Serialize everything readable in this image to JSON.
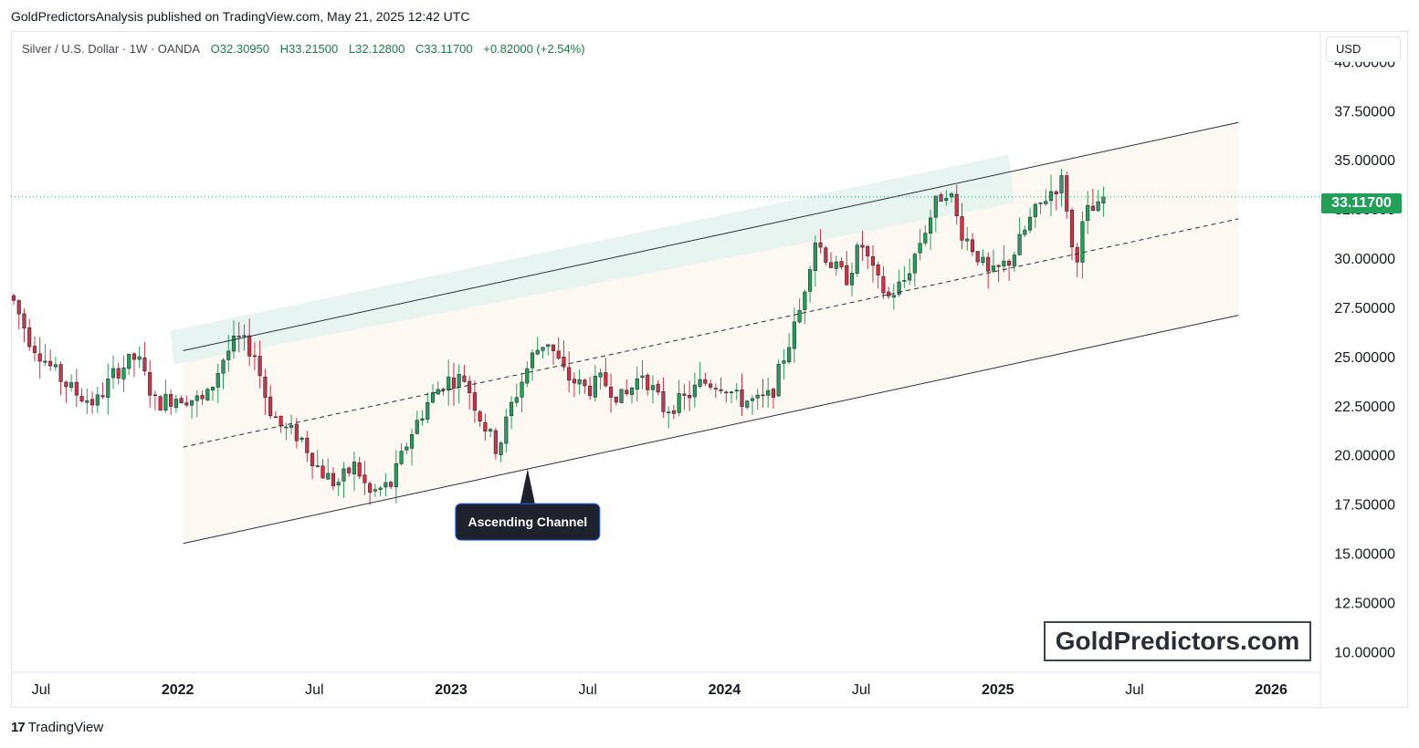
{
  "header": {
    "publisher": "GoldPredictorsAnalysis published on TradingView.com, May 21, 2025 12:42 UTC"
  },
  "symbol_bar": {
    "name": "Silver / U.S. Dollar · 1W · OANDA",
    "open": "O32.30950",
    "high": "H33.21500",
    "low": "L32.12800",
    "close": "C33.11700",
    "change": "+0.82000 (+2.54%)"
  },
  "currency": "USD",
  "last_price_label": "33.11700",
  "watermark": "GoldPredictors.com",
  "footer": {
    "logo_glyph": "17",
    "logo_text": "TradingView"
  },
  "annotation": {
    "label": "Ascending Channel"
  },
  "colors": {
    "up": "#22a05a",
    "down": "#d32f45",
    "channel_fill": "#fdf8f2",
    "resistance_band": "#e4f3ef",
    "line": "#2a2e39",
    "price_line": "#22a05a"
  },
  "chart_data": {
    "type": "candlestick",
    "title": "Silver / U.S. Dollar · 1W · OANDA",
    "y_axis": {
      "range": [
        9.0,
        41.5
      ],
      "ticks": [
        "10.00000",
        "12.50000",
        "15.00000",
        "17.50000",
        "20.00000",
        "22.50000",
        "25.00000",
        "27.50000",
        "30.00000",
        "32.50000",
        "35.00000",
        "37.50000",
        "40.00000"
      ]
    },
    "x_axis": {
      "range_years": [
        2021.39,
        2026.18
      ],
      "ticks": [
        {
          "label": "Jul",
          "t": 2021.5,
          "year": false
        },
        {
          "label": "2022",
          "t": 2022.0,
          "year": true
        },
        {
          "label": "Jul",
          "t": 2022.5,
          "year": false
        },
        {
          "label": "2023",
          "t": 2023.0,
          "year": true
        },
        {
          "label": "Jul",
          "t": 2023.5,
          "year": false
        },
        {
          "label": "2024",
          "t": 2024.0,
          "year": true
        },
        {
          "label": "Jul",
          "t": 2024.5,
          "year": false
        },
        {
          "label": "2025",
          "t": 2025.0,
          "year": true
        },
        {
          "label": "Jul",
          "t": 2025.5,
          "year": false
        },
        {
          "label": "2026",
          "t": 2026.0,
          "year": true
        }
      ]
    },
    "last_price": 33.117,
    "series_keypoints": [
      [
        2021.4,
        27.8
      ],
      [
        2021.46,
        25.8
      ],
      [
        2021.55,
        24.2
      ],
      [
        2021.62,
        23.2
      ],
      [
        2021.7,
        22.6
      ],
      [
        2021.77,
        24.2
      ],
      [
        2021.85,
        25.0
      ],
      [
        2021.92,
        22.6
      ],
      [
        2022.0,
        23.0
      ],
      [
        2022.1,
        22.7
      ],
      [
        2022.17,
        25.0
      ],
      [
        2022.22,
        25.9
      ],
      [
        2022.28,
        25.2
      ],
      [
        2022.33,
        22.5
      ],
      [
        2022.38,
        21.4
      ],
      [
        2022.45,
        20.9
      ],
      [
        2022.52,
        19.2
      ],
      [
        2022.58,
        18.5
      ],
      [
        2022.65,
        19.5
      ],
      [
        2022.7,
        18.0
      ],
      [
        2022.78,
        18.5
      ],
      [
        2022.85,
        21.0
      ],
      [
        2022.92,
        22.8
      ],
      [
        2022.98,
        23.8
      ],
      [
        2023.05,
        23.9
      ],
      [
        2023.1,
        22.1
      ],
      [
        2023.17,
        20.2
      ],
      [
        2023.22,
        22.5
      ],
      [
        2023.3,
        25.1
      ],
      [
        2023.35,
        25.9
      ],
      [
        2023.42,
        24.0
      ],
      [
        2023.5,
        23.3
      ],
      [
        2023.55,
        23.8
      ],
      [
        2023.63,
        22.8
      ],
      [
        2023.7,
        24.2
      ],
      [
        2023.78,
        22.3
      ],
      [
        2023.85,
        22.8
      ],
      [
        2023.92,
        23.7
      ],
      [
        2024.0,
        23.6
      ],
      [
        2024.05,
        22.8
      ],
      [
        2024.12,
        22.7
      ],
      [
        2024.17,
        23.0
      ],
      [
        2024.22,
        25.1
      ],
      [
        2024.27,
        27.0
      ],
      [
        2024.33,
        31.0
      ],
      [
        2024.4,
        29.5
      ],
      [
        2024.45,
        29.0
      ],
      [
        2024.5,
        30.8
      ],
      [
        2024.55,
        29.0
      ],
      [
        2024.6,
        28.0
      ],
      [
        2024.66,
        28.9
      ],
      [
        2024.72,
        31.0
      ],
      [
        2024.78,
        33.0
      ],
      [
        2024.82,
        33.6
      ],
      [
        2024.86,
        31.5
      ],
      [
        2024.92,
        30.3
      ],
      [
        2024.97,
        29.0
      ],
      [
        2025.05,
        30.0
      ],
      [
        2025.12,
        32.0
      ],
      [
        2025.18,
        33.2
      ],
      [
        2025.24,
        34.0
      ],
      [
        2025.28,
        29.5
      ],
      [
        2025.32,
        32.3
      ],
      [
        2025.37,
        32.5
      ],
      [
        2025.4,
        33.1
      ]
    ],
    "channel": {
      "upper_line": [
        [
          2022.02,
          25.3
        ],
        [
          2025.88,
          36.9
        ]
      ],
      "lower_line": [
        [
          2022.02,
          15.5
        ],
        [
          2025.88,
          27.1
        ]
      ],
      "median_line": [
        [
          2022.02,
          20.4
        ],
        [
          2025.88,
          32.0
        ]
      ],
      "resistance_band": [
        [
          2022.0,
          26.3,
          24.6
        ],
        [
          2025.0,
          34.8,
          33.0
        ]
      ]
    }
  }
}
